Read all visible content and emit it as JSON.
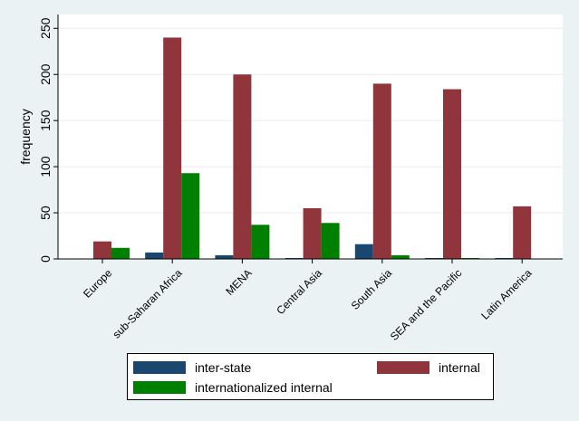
{
  "chart_data": {
    "type": "bar",
    "title": "",
    "xlabel": "",
    "ylabel": "frequency",
    "ylim": [
      0,
      265
    ],
    "yticks": [
      0,
      50,
      100,
      150,
      200,
      250
    ],
    "grid": true,
    "legend_position": "bottom",
    "categories": [
      "Europe",
      "sub-Saharan Africa",
      "MENA",
      "Central Asia",
      "South Asia",
      "SEA and the Pacific",
      "Latin America"
    ],
    "series": [
      {
        "name": "inter-state",
        "color": "#1a476f",
        "values": [
          0,
          7,
          4,
          1,
          16,
          1,
          1
        ]
      },
      {
        "name": "internal",
        "color": "#90353b",
        "values": [
          19,
          240,
          200,
          55,
          190,
          184,
          57
        ]
      },
      {
        "name": "internationalized internal",
        "color": "#008000",
        "values": [
          12,
          93,
          37,
          39,
          4,
          1,
          0
        ]
      }
    ]
  }
}
